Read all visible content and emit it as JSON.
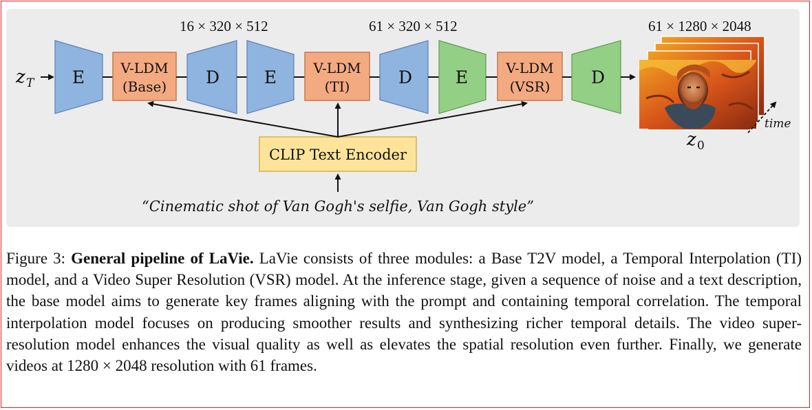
{
  "diagram": {
    "input_symbol": "z",
    "input_subscript": "T",
    "output_symbol": "z",
    "output_subscript": "0",
    "time_label": "time",
    "dims": [
      "16 × 320 × 512",
      "61 × 320 × 512",
      "61 × 1280 × 2048"
    ],
    "blocks": {
      "e1": "E",
      "d1": "D",
      "e2": "E",
      "d2": "D",
      "e3": "E",
      "d3": "D",
      "ldm_base_line1": "V-LDM",
      "ldm_base_line2": "(Base)",
      "ldm_ti_line1": "V-LDM",
      "ldm_ti_line2": "(TI)",
      "ldm_vsr_line1": "V-LDM",
      "ldm_vsr_line2": "(VSR)"
    },
    "encoder_label": "CLIP Text Encoder",
    "prompt": "“Cinematic shot of Van Gogh's selfie, Van Gogh style”",
    "colors": {
      "blue": "#8fb4e0",
      "green": "#93cf84",
      "orange": "#f4aa80",
      "yellow": "#fde49a"
    }
  },
  "caption": {
    "label": "Figure 3:",
    "title": "General pipeline of LaVie.",
    "text": "LaVie consists of three modules: a Base T2V model, a Temporal Interpolation (TI) model, and a Video Super Resolution (VSR) model. At the inference stage, given a sequence of noise and a text description, the base model aims to generate key frames aligning with the prompt and containing temporal correlation. The temporal interpolation model focuses on producing smoother results and synthesizing richer temporal details. The video super-resolution model enhances the visual quality as well as elevates the spatial resolution even further. Finally, we generate videos at 1280 × 2048 resolution with 61 frames."
  }
}
